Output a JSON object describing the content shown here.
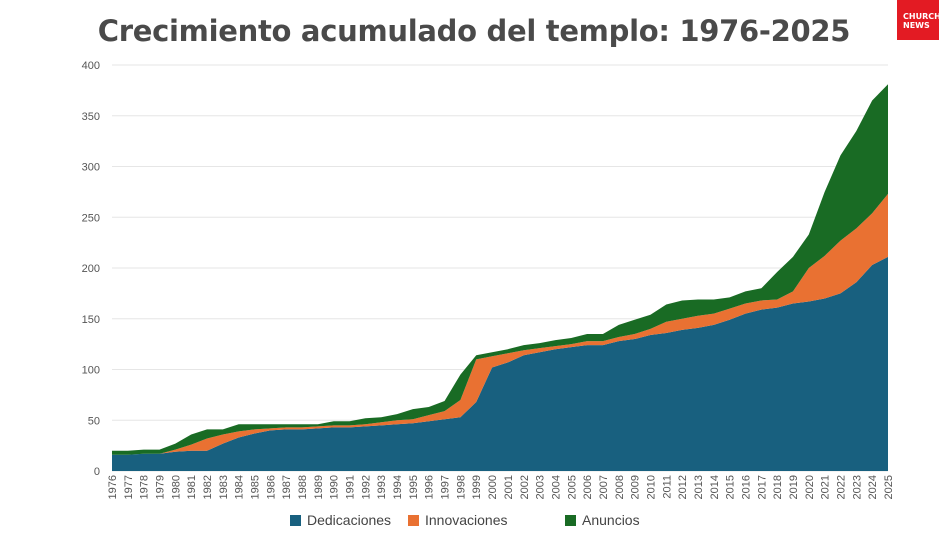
{
  "title": "Crecimiento acumulado del templo: 1976-2025",
  "logo": {
    "line1": "CHURCH",
    "line2": "NEWS",
    "color": "#e31b23"
  },
  "chart_data": {
    "type": "area",
    "stacked": true,
    "title": "Crecimiento acumulado del templo: 1976-2025",
    "xlabel": "",
    "ylabel": "",
    "ylim": [
      0,
      400
    ],
    "yticks": [
      0,
      50,
      100,
      150,
      200,
      250,
      300,
      350,
      400
    ],
    "grid": true,
    "legend_position": "bottom",
    "x": [
      "1976",
      "1977",
      "1978",
      "1979",
      "1980",
      "1981",
      "1982",
      "1983",
      "1984",
      "1985",
      "1986",
      "1987",
      "1988",
      "1989",
      "1990",
      "1991",
      "1992",
      "1993",
      "1994",
      "1995",
      "1996",
      "1997",
      "1998",
      "1999",
      "2000",
      "2001",
      "2002",
      "2003",
      "2004",
      "2005",
      "2006",
      "2007",
      "2008",
      "2009",
      "2010",
      "2011",
      "2012",
      "2013",
      "2014",
      "2015",
      "2016",
      "2017",
      "2018",
      "2019",
      "2020",
      "2021",
      "2022",
      "2023",
      "2024",
      "2025"
    ],
    "series": [
      {
        "name": "Dedicaciones",
        "color": "#18607f",
        "values": [
          16,
          16,
          17,
          17,
          19,
          20,
          20,
          27,
          33,
          37,
          40,
          41,
          41,
          42,
          43,
          43,
          44,
          45,
          46,
          47,
          49,
          51,
          53,
          68,
          102,
          107,
          114,
          117,
          120,
          122,
          124,
          124,
          128,
          130,
          134,
          136,
          139,
          141,
          144,
          149,
          155,
          159,
          161,
          165,
          167,
          170,
          175,
          186,
          203,
          211
        ]
      },
      {
        "name": "Innovaciones",
        "color": "#e97132",
        "values": [
          0,
          0,
          0,
          0,
          2,
          6,
          12,
          9,
          6,
          4,
          2,
          2,
          2,
          2,
          2,
          2,
          2,
          3,
          4,
          4,
          6,
          8,
          17,
          42,
          11,
          9,
          5,
          4,
          3,
          3,
          4,
          4,
          4,
          5,
          6,
          11,
          11,
          12,
          11,
          11,
          10,
          9,
          8,
          12,
          33,
          42,
          52,
          53,
          51,
          62
        ]
      },
      {
        "name": "Anuncios",
        "color": "#196b24",
        "values": [
          4,
          4,
          4,
          4,
          6,
          10,
          9,
          5,
          7,
          5,
          4,
          3,
          3,
          2,
          4,
          4,
          6,
          5,
          6,
          10,
          8,
          10,
          25,
          4,
          4,
          4,
          5,
          5,
          6,
          6,
          7,
          7,
          12,
          14,
          14,
          17,
          18,
          16,
          14,
          11,
          12,
          12,
          27,
          34,
          33,
          63,
          84,
          96,
          111,
          108
        ]
      }
    ]
  }
}
